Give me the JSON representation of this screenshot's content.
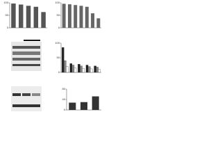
{
  "chart_data": [
    {
      "type": "bar",
      "values": [
        97,
        93,
        88,
        84,
        63
      ],
      "color": "#555555",
      "ylim": [
        0,
        100
      ],
      "yticks": [
        0,
        50,
        100
      ]
    },
    {
      "type": "bar",
      "values": [
        96,
        94,
        91,
        88,
        84,
        58,
        38
      ],
      "color": "#666666",
      "ylim": [
        0,
        100
      ],
      "yticks": [
        0,
        50,
        100
      ]
    },
    {
      "type": "grouped",
      "ylim": [
        0,
        100
      ],
      "yticks": [
        0,
        50,
        100
      ],
      "series": [
        {
          "color": "#222222",
          "values": [
            85,
            30,
            28,
            25,
            22
          ]
        },
        {
          "color": "#888888",
          "values": [
            40,
            25,
            22,
            20,
            18
          ]
        },
        {
          "color": "#ffffff",
          "values": [
            20,
            15,
            14,
            12,
            10
          ]
        }
      ]
    },
    {
      "type": "bar",
      "values": [
        28,
        30,
        52
      ],
      "color": "#333333",
      "ylim": [
        0,
        80
      ],
      "yticks": [
        0,
        40,
        80
      ]
    }
  ]
}
